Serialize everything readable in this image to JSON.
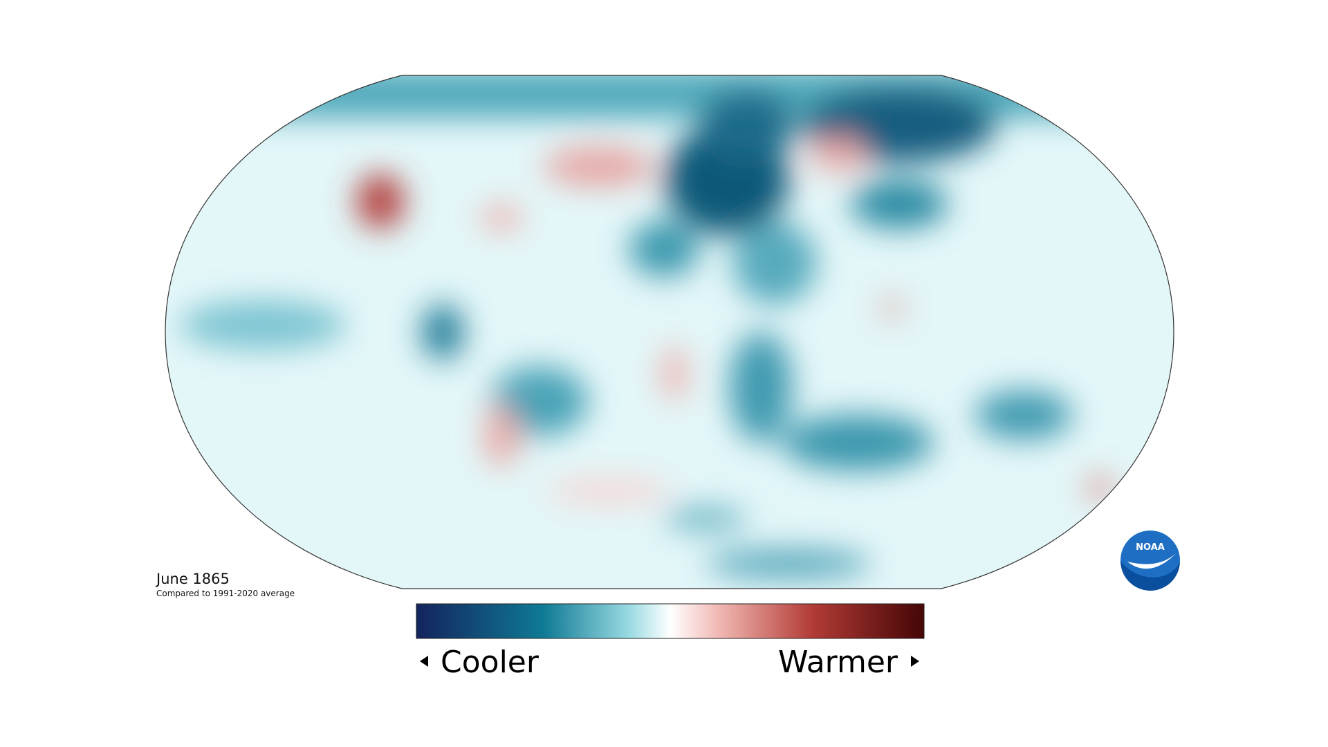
{
  "title": "June 1865",
  "subtitle": "Compared to 1991-2020 average",
  "legend": {
    "low_label": "Cooler",
    "high_label": "Warmer"
  },
  "logo": "NOAA"
}
